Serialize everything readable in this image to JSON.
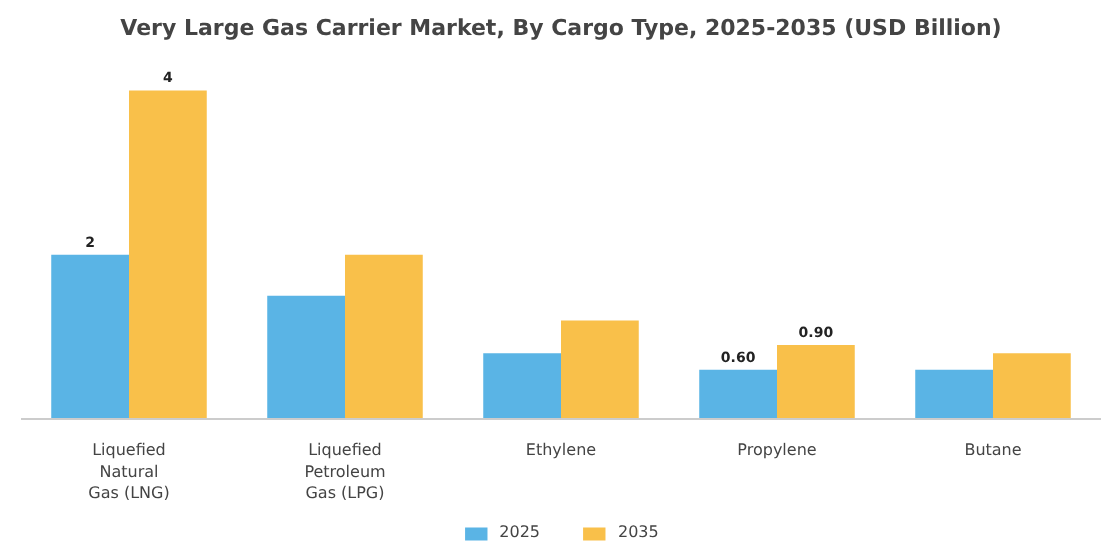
{
  "chart_data": {
    "type": "bar",
    "title": "Very Large Gas Carrier Market, By Cargo Type, 2025-2035 (USD Billion)",
    "categories": [
      "Liquefied Natural Gas (LNG)",
      "Liquefied Petroleum Gas (LPG)",
      "Ethylene",
      "Propylene",
      "Butane"
    ],
    "series": [
      {
        "name": "2025",
        "color": "#5ab4e5",
        "values": [
          2,
          1.5,
          0.8,
          0.6,
          0.6
        ],
        "value_labels": [
          "2",
          null,
          null,
          "0.60",
          null
        ]
      },
      {
        "name": "2035",
        "color": "#f9c04a",
        "values": [
          4,
          2.0,
          1.2,
          0.9,
          0.8
        ],
        "value_labels": [
          "4",
          null,
          null,
          "0.90",
          null
        ]
      }
    ],
    "legend": "bottom"
  }
}
